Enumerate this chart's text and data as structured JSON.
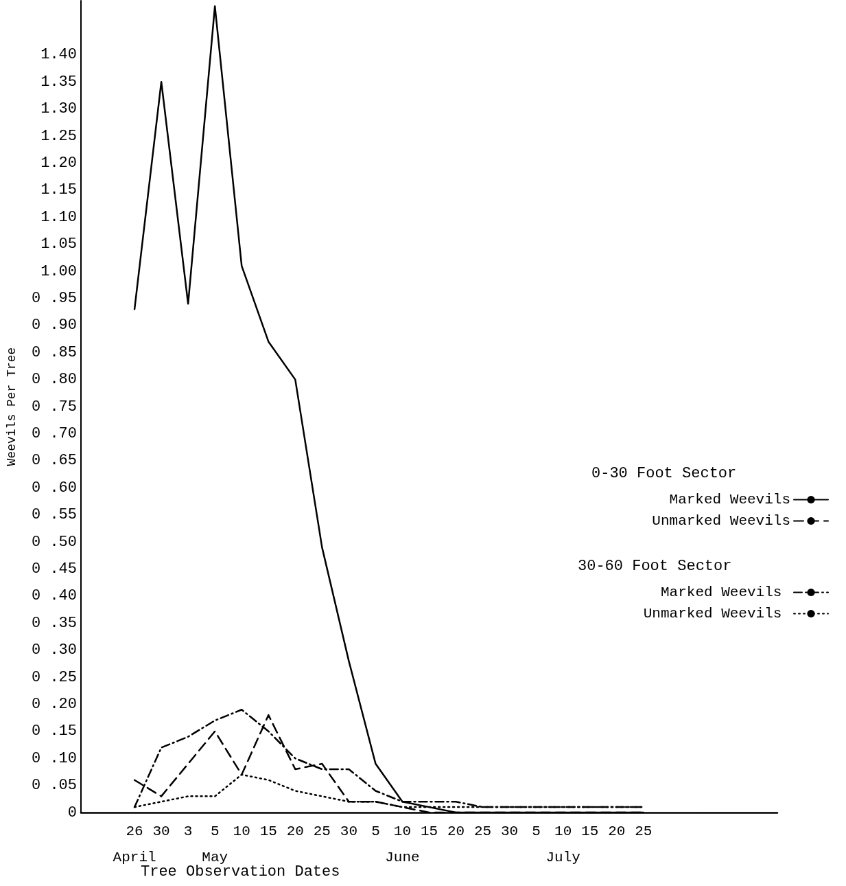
{
  "chart_data": {
    "type": "line",
    "xlabel": "Tree Observation Dates",
    "ylabel": "Weevils Per Tree",
    "categories": [
      null,
      null,
      "26\nApril",
      "30",
      "3",
      "5\nMay",
      "10",
      "15",
      "20",
      "25",
      "30",
      "5",
      "10\nJune",
      "15",
      "20",
      "25",
      "30",
      "5",
      "10\nJuly",
      "15",
      "20",
      "25",
      null,
      null,
      null,
      null,
      null
    ],
    "ylim": [
      0,
      1.5
    ],
    "yticks": [
      0,
      {
        "value": 0.05,
        "label": "0 .05"
      },
      {
        "value": 0.1,
        "label": "0 .10"
      },
      {
        "value": 0.15,
        "label": "0 .15"
      },
      {
        "value": 0.2,
        "label": "0 .20"
      },
      {
        "value": 0.25,
        "label": "0 .25"
      },
      {
        "value": 0.3,
        "label": "0 .30"
      },
      {
        "value": 0.35,
        "label": "0 .35"
      },
      {
        "value": 0.4,
        "label": "0 .40"
      },
      {
        "value": 0.45,
        "label": "0 .45"
      },
      {
        "value": 0.5,
        "label": "0 .50"
      },
      {
        "value": 0.55,
        "label": "0 .55"
      },
      {
        "value": 0.6,
        "label": "0 .60"
      },
      {
        "value": 0.65,
        "label": "0 .65"
      },
      {
        "value": 0.7,
        "label": "0 .70"
      },
      {
        "value": 0.75,
        "label": "0 .75"
      },
      {
        "value": 0.8,
        "label": "0 .80"
      },
      {
        "value": 0.85,
        "label": "0 .85"
      },
      {
        "value": 0.9,
        "label": "0 .90"
      },
      {
        "value": 0.95,
        "label": "0 .95"
      },
      {
        "value": 1,
        "label": "1.00"
      },
      {
        "value": 1.05,
        "label": "1.05"
      },
      {
        "value": 1.1,
        "label": "1.10"
      },
      {
        "value": 1.15,
        "label": "1.15"
      },
      {
        "value": 1.2,
        "label": "1.20"
      },
      {
        "value": 1.25,
        "label": "1.25"
      },
      {
        "value": 1.3,
        "label": "1.30"
      },
      {
        "value": 1.35,
        "label": "1.35"
      },
      {
        "value": 1.4,
        "label": "1.40"
      }
    ],
    "series": [
      {
        "name": "Marked Weevils",
        "color": "#000000",
        "line_style": "solid",
        "values": [
          null,
          null,
          0.93,
          1.35,
          0.94,
          1.49,
          1.01,
          0.87,
          0.8,
          0.49,
          0.28,
          0.09,
          0.02,
          0.01,
          0,
          0,
          0,
          0,
          0,
          0,
          0,
          0,
          null,
          null,
          null,
          null,
          null
        ]
      },
      {
        "name": "Unmarked Weevils",
        "color": "#000000",
        "line_style": "dashed",
        "values": [
          null,
          null,
          0.06,
          0.03,
          0.09,
          0.15,
          0.07,
          0.18,
          0.08,
          0.09,
          0.02,
          0.02,
          0.01,
          0,
          0,
          0,
          0,
          0,
          0,
          0,
          0,
          0,
          null,
          null,
          null,
          null,
          null
        ]
      },
      {
        "name": "Marked Weevils ",
        "color": "#000000",
        "line_style": "dashdot",
        "values": [
          null,
          null,
          0.01,
          0.12,
          0.14,
          0.17,
          0.19,
          0.15,
          0.1,
          0.08,
          0.08,
          0.04,
          0.02,
          0.02,
          0.02,
          0.01,
          0.01,
          0.01,
          0.01,
          0.01,
          0.01,
          0.01,
          null,
          null,
          null,
          null,
          null
        ]
      },
      {
        "name": "Unmarked Weevils ",
        "color": "#000000",
        "line_style": "dotted",
        "values": [
          null,
          null,
          0.01,
          0.02,
          0.03,
          0.03,
          0.07,
          0.06,
          0.04,
          0.03,
          0.02,
          0.02,
          0.01,
          0.01,
          0.01,
          0.01,
          0.01,
          0.01,
          0.01,
          0.01,
          0.01,
          0.01,
          null,
          null,
          null,
          null,
          null
        ]
      }
    ],
    "legend": "right",
    "marker": "none",
    "grid": false,
    "annotations": [
      "0-30 Foot Sector",
      "30-60 Foot Sector"
    ]
  }
}
